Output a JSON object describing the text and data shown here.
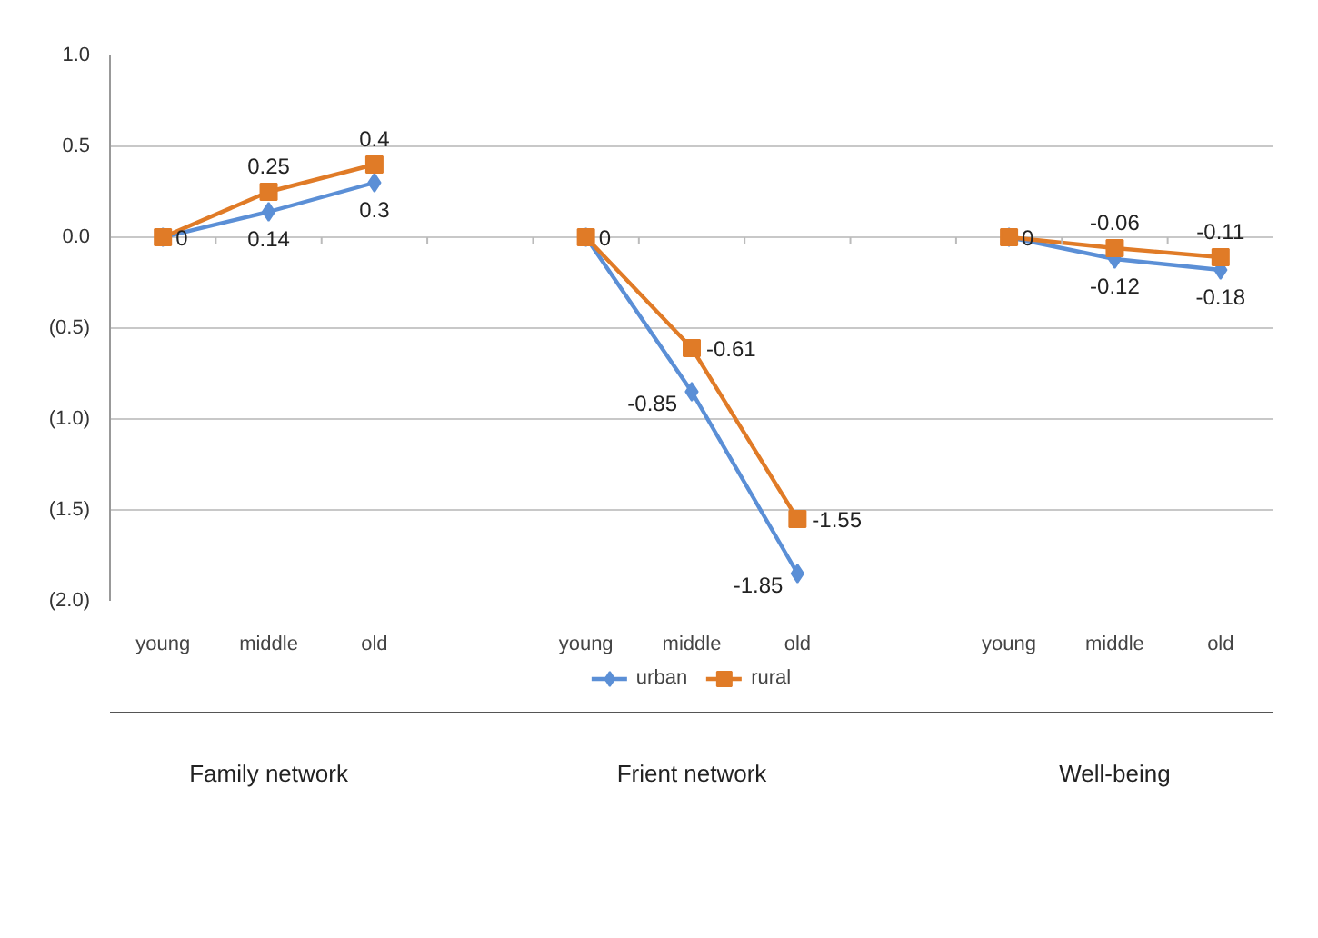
{
  "chart_data": {
    "type": "line",
    "categories": [
      "young",
      "middle",
      "old",
      null,
      "young",
      "middle",
      "old",
      null,
      "young",
      "middle",
      "old"
    ],
    "series": [
      {
        "name": "urban",
        "color": "#5b8fd6",
        "marker": "diamond",
        "values": [
          0,
          0.14,
          0.3,
          null,
          0,
          -0.85,
          -1.85,
          null,
          0,
          -0.12,
          -0.18
        ],
        "value_labels": [
          "0",
          "0.14",
          "0.3",
          null,
          null,
          "-0.85",
          "-1.85",
          null,
          "0",
          "-0.12",
          "-0.18"
        ]
      },
      {
        "name": "rural",
        "color": "#e07b27",
        "marker": "square",
        "values": [
          0,
          0.25,
          0.4,
          null,
          0,
          -0.61,
          -1.55,
          null,
          0,
          -0.06,
          -0.11
        ],
        "value_labels": [
          null,
          "0.25",
          "0.4",
          null,
          "0",
          "-0.61",
          "-1.55",
          null,
          null,
          "-0.06",
          "-0.11"
        ]
      }
    ],
    "ylim": [
      -2.0,
      1.0
    ],
    "yticks": [
      {
        "value": 1.0,
        "label": "1.0"
      },
      {
        "value": 0.5,
        "label": "0.5"
      },
      {
        "value": 0.0,
        "label": "0.0"
      },
      {
        "value": -0.5,
        "label": "(0.5)"
      },
      {
        "value": -1.0,
        "label": "(1.0)"
      },
      {
        "value": -1.5,
        "label": "(1.5)"
      },
      {
        "value": -2.0,
        "label": "(2.0)"
      }
    ],
    "annotations": [
      "Family network",
      "Frient network",
      "Well-being"
    ],
    "grid": "y",
    "legend": "bottom",
    "line_style": "solid"
  }
}
